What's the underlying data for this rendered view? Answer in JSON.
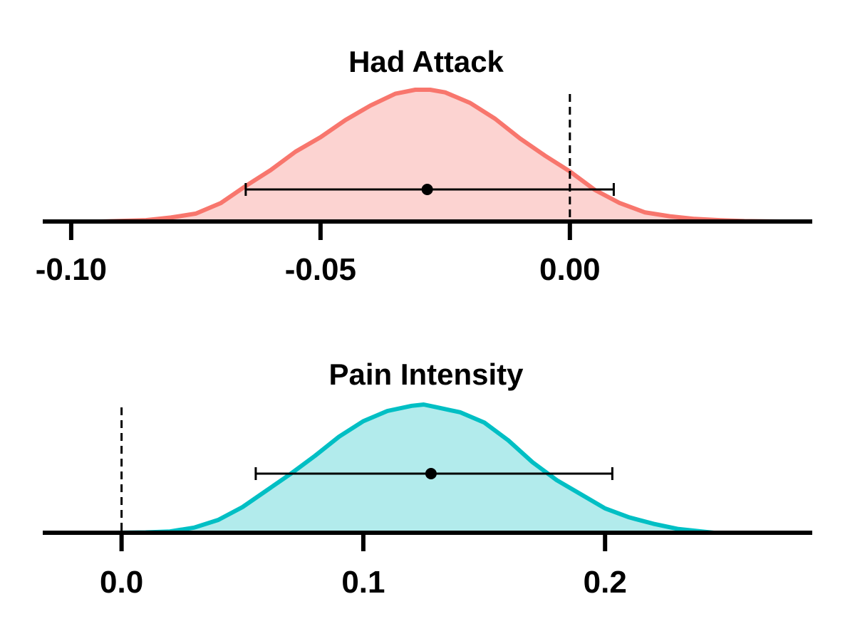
{
  "chart_data": [
    {
      "type": "area",
      "title": "Had Attack",
      "colors": {
        "line": "#F8766D",
        "fill": "#FCD3D1"
      },
      "x_ticks": [
        -0.1,
        -0.05,
        0.0
      ],
      "x_tick_labels": [
        "-0.10",
        "-0.05",
        "0.00"
      ],
      "xlim": [
        -0.1057,
        0.0486
      ],
      "reference_line": 0.0,
      "point_estimate": -0.0286,
      "interval": [
        -0.065,
        0.0088
      ],
      "density": {
        "x": [
          -0.094,
          -0.085,
          -0.08,
          -0.075,
          -0.07,
          -0.065,
          -0.06,
          -0.055,
          -0.05,
          -0.045,
          -0.04,
          -0.035,
          -0.031,
          -0.028,
          -0.025,
          -0.02,
          -0.015,
          -0.01,
          -0.005,
          0.0,
          0.005,
          0.01,
          0.015,
          0.02,
          0.025,
          0.03,
          0.035,
          0.042
        ],
        "y": [
          0.0,
          0.01,
          0.03,
          0.06,
          0.14,
          0.27,
          0.39,
          0.53,
          0.64,
          0.77,
          0.88,
          0.97,
          1.0,
          1.0,
          0.98,
          0.9,
          0.78,
          0.63,
          0.5,
          0.38,
          0.24,
          0.14,
          0.07,
          0.04,
          0.02,
          0.01,
          0.003,
          0.0
        ]
      }
    },
    {
      "type": "area",
      "title": "Pain Intensity",
      "colors": {
        "line": "#00BFC4",
        "fill": "#B2EBEC"
      },
      "x_ticks": [
        0.0,
        0.1,
        0.2
      ],
      "x_tick_labels": [
        "0.0",
        "0.1",
        "0.2"
      ],
      "xlim": [
        -0.0326,
        0.2857
      ],
      "reference_line": 0.0,
      "point_estimate": 0.128,
      "interval": [
        0.0555,
        0.203
      ],
      "density": {
        "x": [
          -0.002,
          0.01,
          0.02,
          0.03,
          0.04,
          0.05,
          0.06,
          0.07,
          0.08,
          0.09,
          0.1,
          0.11,
          0.12,
          0.125,
          0.13,
          0.14,
          0.15,
          0.16,
          0.17,
          0.18,
          0.19,
          0.2,
          0.21,
          0.22,
          0.23,
          0.24,
          0.245
        ],
        "y": [
          0.0,
          0.003,
          0.01,
          0.04,
          0.1,
          0.2,
          0.33,
          0.46,
          0.6,
          0.75,
          0.87,
          0.95,
          0.99,
          1.0,
          0.98,
          0.94,
          0.86,
          0.72,
          0.55,
          0.41,
          0.3,
          0.19,
          0.12,
          0.07,
          0.03,
          0.01,
          0.0
        ]
      }
    }
  ]
}
